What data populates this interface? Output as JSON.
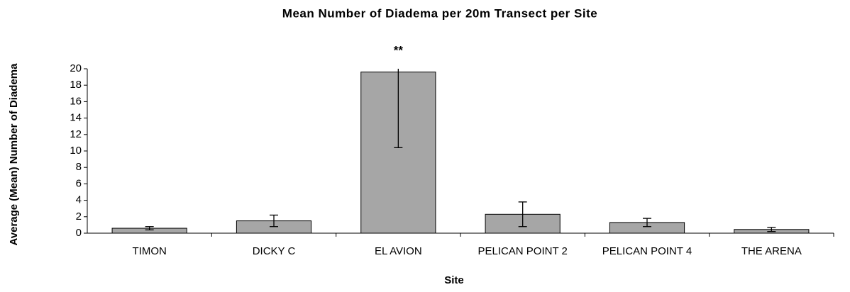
{
  "chart_data": {
    "type": "bar",
    "title": "Mean Number of Diadema per 20m Transect per Site",
    "x_label": "Site",
    "y_label": "Average (Mean) Number of Diadema",
    "annotation": "**",
    "categories": [
      "TIMON",
      "DICKY C",
      "EL AVION",
      "PELICAN POINT 2",
      "PELICAN POINT 4",
      "THE ARENA"
    ],
    "values": [
      0.6,
      1.5,
      19.6,
      2.3,
      1.3,
      0.45
    ],
    "errors": [
      0.2,
      0.7,
      9.2,
      1.5,
      0.5,
      0.25
    ],
    "color": "#a6a6a6",
    "ylim": [
      0,
      20
    ],
    "yticks": [
      0,
      2,
      4,
      6,
      8,
      10,
      12,
      14,
      16,
      18,
      20
    ],
    "grid": false
  }
}
